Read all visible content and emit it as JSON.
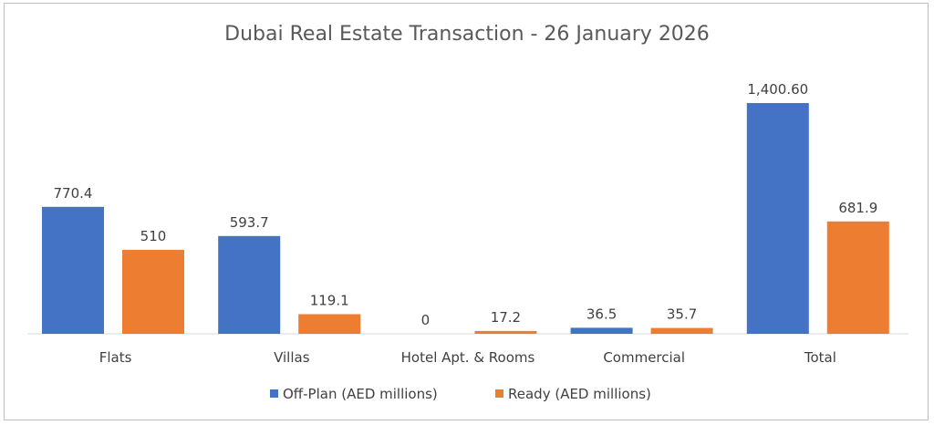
{
  "chart_data": {
    "type": "bar",
    "title": "Dubai Real Estate Transaction - 26 January 2026",
    "categories": [
      "Flats",
      "Villas",
      "Hotel Apt. & Rooms",
      "Commercial",
      "Total"
    ],
    "series": [
      {
        "name": "Off-Plan (AED millions)",
        "color": "#4472c4",
        "values": [
          770.4,
          593.7,
          0,
          36.5,
          1400.6
        ],
        "labels": [
          "770.4",
          "593.7",
          "0",
          "36.5",
          "1,400.60"
        ]
      },
      {
        "name": "Ready (AED millions)",
        "color": "#ed7d31",
        "values": [
          510,
          119.1,
          17.2,
          35.7,
          681.9
        ],
        "labels": [
          "510",
          "119.1",
          "17.2",
          "35.7",
          "681.9"
        ]
      }
    ],
    "ylim": [
      0,
      1400.6
    ],
    "xlabel": "",
    "ylabel": "",
    "grid": false,
    "legend_position": "bottom"
  }
}
